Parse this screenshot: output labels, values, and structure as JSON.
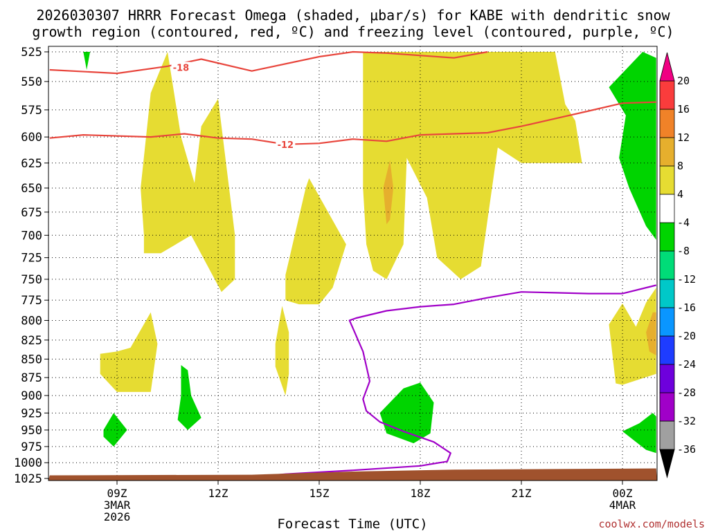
{
  "chart_data": {
    "type": "heatmap",
    "title_line1": "2026030307 HRRR Forecast Omega (shaded, μbar/s) for KABE with dendritic snow",
    "title_line2": "growth region (contoured, red, ºC) and freezing level (contoured, purple, ºC)",
    "xlabel": "Forecast Time (UTC)",
    "x_ticks": [
      {
        "hour": 9,
        "label": "09Z",
        "sub1": "3MAR",
        "sub2": "2026"
      },
      {
        "hour": 12,
        "label": "12Z",
        "sub1": "",
        "sub2": ""
      },
      {
        "hour": 15,
        "label": "15Z",
        "sub1": "",
        "sub2": ""
      },
      {
        "hour": 18,
        "label": "18Z",
        "sub1": "",
        "sub2": ""
      },
      {
        "hour": 21,
        "label": "21Z",
        "sub1": "",
        "sub2": ""
      },
      {
        "hour": 24,
        "label": "00Z",
        "sub1": "4MAR",
        "sub2": ""
      }
    ],
    "xlim": [
      7,
      25
    ],
    "y_ticks": [
      525,
      550,
      575,
      600,
      625,
      650,
      675,
      700,
      725,
      750,
      775,
      800,
      825,
      850,
      875,
      900,
      925,
      950,
      975,
      1000,
      1025
    ],
    "ylim": [
      525,
      1025
    ],
    "y_scale": "log-pressure",
    "grid": true,
    "colorbar": {
      "levels": [
        -36,
        -32,
        -28,
        -24,
        -20,
        -16,
        -12,
        -8,
        -4,
        4,
        8,
        12,
        16,
        20
      ],
      "colors": [
        "#a0a0a0",
        "#a000c8",
        "#6e00dc",
        "#1e3cff",
        "#0a96ff",
        "#00c8c8",
        "#00dc78",
        "#00d400",
        "#ffffff",
        "#e6dc32",
        "#e6af2d",
        "#f08228",
        "#fa3c3c",
        "#f00082"
      ]
    },
    "shaded_regions": [
      {
        "value": 6,
        "color": "#e6dc32",
        "points": [
          [
            9.8,
            700
          ],
          [
            9.7,
            650
          ],
          [
            10.0,
            560
          ],
          [
            10.5,
            525
          ],
          [
            10.9,
            600
          ],
          [
            11.3,
            645
          ],
          [
            11.5,
            590
          ],
          [
            12.0,
            565
          ],
          [
            12.5,
            700
          ],
          [
            12.5,
            750
          ],
          [
            12.1,
            765
          ],
          [
            11.2,
            700
          ],
          [
            10.3,
            720
          ],
          [
            9.8,
            720
          ]
        ]
      },
      {
        "value": 6,
        "color": "#e6dc32",
        "points": [
          [
            14.0,
            775
          ],
          [
            14.0,
            745
          ],
          [
            14.6,
            650
          ],
          [
            14.7,
            640
          ],
          [
            15.8,
            710
          ],
          [
            15.4,
            760
          ],
          [
            15.0,
            780
          ],
          [
            14.4,
            780
          ]
        ]
      },
      {
        "value": 6,
        "color": "#e6dc32",
        "points": [
          [
            16.3,
            525
          ],
          [
            17.0,
            525
          ],
          [
            18.0,
            525
          ],
          [
            19.0,
            525
          ],
          [
            20.0,
            525
          ],
          [
            21.0,
            525
          ],
          [
            22.0,
            525
          ],
          [
            22.3,
            570
          ],
          [
            22.6,
            585
          ],
          [
            22.8,
            625
          ],
          [
            22.0,
            625
          ],
          [
            21.0,
            625
          ],
          [
            20.3,
            610
          ],
          [
            19.8,
            735
          ],
          [
            19.2,
            750
          ],
          [
            18.5,
            725
          ],
          [
            18.2,
            660
          ],
          [
            17.6,
            620
          ],
          [
            17.5,
            710
          ],
          [
            17.0,
            750
          ],
          [
            16.6,
            740
          ],
          [
            16.4,
            710
          ],
          [
            16.3,
            650
          ]
        ]
      },
      {
        "value": 6,
        "color": "#e6dc32",
        "points": [
          [
            8.5,
            843
          ],
          [
            9.0,
            840
          ],
          [
            9.4,
            835
          ],
          [
            10.0,
            790
          ],
          [
            10.2,
            830
          ],
          [
            10.0,
            895
          ],
          [
            9.0,
            895
          ],
          [
            8.5,
            870
          ]
        ]
      },
      {
        "value": 6,
        "color": "#e6dc32",
        "points": [
          [
            13.7,
            830
          ],
          [
            13.9,
            782
          ],
          [
            14.1,
            815
          ],
          [
            14.1,
            870
          ],
          [
            14.0,
            900
          ],
          [
            13.7,
            860
          ]
        ]
      },
      {
        "value": 6,
        "color": "#e6dc32",
        "points": [
          [
            23.6,
            805
          ],
          [
            24.0,
            779
          ],
          [
            24.4,
            808
          ],
          [
            24.7,
            778
          ],
          [
            25.0,
            760
          ],
          [
            25.0,
            870
          ],
          [
            24.0,
            885
          ],
          [
            23.8,
            883
          ]
        ]
      },
      {
        "value": 10,
        "color": "#e6af2d",
        "points": [
          [
            16.9,
            650
          ],
          [
            17.1,
            622
          ],
          [
            17.2,
            650
          ],
          [
            17.1,
            683
          ],
          [
            17.0,
            688
          ]
        ]
      },
      {
        "value": 10,
        "color": "#e6af2d",
        "points": [
          [
            24.7,
            815
          ],
          [
            24.9,
            790
          ],
          [
            25.0,
            790
          ],
          [
            25.0,
            845
          ],
          [
            24.8,
            840
          ]
        ]
      },
      {
        "value": -6,
        "color": "#00d400",
        "points": [
          [
            24.6,
            525
          ],
          [
            25.0,
            530
          ],
          [
            25.0,
            705
          ],
          [
            24.7,
            690
          ],
          [
            24.2,
            650
          ],
          [
            23.9,
            620
          ],
          [
            24.1,
            580
          ],
          [
            23.6,
            555
          ]
        ]
      },
      {
        "value": -6,
        "color": "#00d400",
        "points": [
          [
            24.0,
            952
          ],
          [
            24.5,
            940
          ],
          [
            24.9,
            925
          ],
          [
            25.0,
            930
          ],
          [
            25.0,
            985
          ],
          [
            24.7,
            980
          ]
        ]
      },
      {
        "value": -6,
        "color": "#00d400",
        "points": [
          [
            17.5,
            890
          ],
          [
            18.0,
            882
          ],
          [
            18.4,
            910
          ],
          [
            18.3,
            955
          ],
          [
            17.8,
            970
          ],
          [
            17.0,
            955
          ],
          [
            16.8,
            925
          ]
        ]
      },
      {
        "value": -6,
        "color": "#00d400",
        "points": [
          [
            10.9,
            858
          ],
          [
            11.1,
            865
          ],
          [
            11.2,
            900
          ],
          [
            11.5,
            932
          ],
          [
            11.1,
            950
          ],
          [
            10.8,
            935
          ],
          [
            10.9,
            900
          ]
        ]
      },
      {
        "value": -6,
        "color": "#00d400",
        "points": [
          [
            8.6,
            950
          ],
          [
            8.9,
            925
          ],
          [
            9.3,
            950
          ],
          [
            8.9,
            975
          ],
          [
            8.6,
            960
          ]
        ]
      },
      {
        "value": -6,
        "color": "#00d400",
        "points": [
          [
            8.0,
            525
          ],
          [
            8.2,
            525
          ],
          [
            8.1,
            540
          ]
        ]
      }
    ],
    "contours": [
      {
        "name": "-18",
        "color": "#e8453c",
        "label_at": [
          10.9,
          538
        ],
        "points": [
          [
            7,
            540
          ],
          [
            9,
            543
          ],
          [
            10.5,
            537
          ],
          [
            11.5,
            531
          ],
          [
            13,
            541
          ],
          [
            15,
            529
          ],
          [
            16,
            525
          ],
          [
            17,
            526
          ],
          [
            19,
            530
          ],
          [
            20,
            525
          ]
        ]
      },
      {
        "name": "-12",
        "color": "#e8453c",
        "label_at": [
          14.0,
          607
        ],
        "points": [
          [
            7,
            601
          ],
          [
            8,
            598
          ],
          [
            10,
            600
          ],
          [
            11,
            597
          ],
          [
            12,
            601
          ],
          [
            13,
            602
          ],
          [
            14,
            607
          ],
          [
            15,
            606
          ],
          [
            16,
            602
          ],
          [
            17,
            604
          ],
          [
            18,
            598
          ],
          [
            19,
            597
          ],
          [
            20,
            596
          ],
          [
            21,
            590
          ],
          [
            22,
            583
          ],
          [
            23,
            576
          ],
          [
            24,
            569
          ],
          [
            25,
            568
          ]
        ]
      },
      {
        "name": "0",
        "color": "#a000c8",
        "label_at": null,
        "points": [
          [
            13.6,
            1020
          ],
          [
            14,
            1018
          ],
          [
            16,
            1012
          ],
          [
            18,
            1005
          ],
          [
            18.8,
            998
          ],
          [
            18.9,
            985
          ],
          [
            18.4,
            968
          ],
          [
            17.5,
            952
          ],
          [
            16.8,
            938
          ],
          [
            16.4,
            922
          ],
          [
            16.3,
            905
          ],
          [
            16.5,
            880
          ],
          [
            16.3,
            840
          ],
          [
            15.9,
            800
          ],
          [
            16.1,
            797
          ],
          [
            17,
            788
          ],
          [
            18,
            783
          ],
          [
            19,
            780
          ],
          [
            20,
            772
          ],
          [
            21,
            765
          ],
          [
            22,
            766
          ],
          [
            23,
            767
          ],
          [
            24,
            767
          ],
          [
            25,
            757
          ]
        ]
      }
    ],
    "ground": {
      "color": "#a0522d",
      "points": [
        [
          7,
          1020
        ],
        [
          13,
          1019
        ],
        [
          16,
          1014
        ],
        [
          19,
          1011
        ],
        [
          22,
          1010
        ],
        [
          25,
          1009
        ]
      ]
    }
  },
  "credit": "coolwx.com/models"
}
